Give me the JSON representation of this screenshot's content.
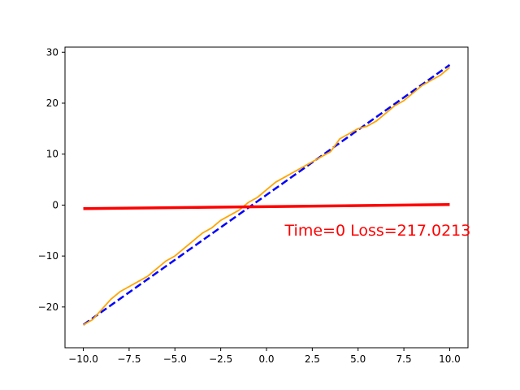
{
  "chart_data": {
    "type": "line",
    "title": "",
    "xlabel": "",
    "ylabel": "",
    "xlim": [
      -11,
      11
    ],
    "ylim": [
      -28,
      31
    ],
    "grid": false,
    "x_ticks": [
      -10,
      -7.5,
      -5,
      -2.5,
      0,
      2.5,
      5,
      7.5,
      10
    ],
    "x_tick_labels": [
      "−10.0",
      "−7.5",
      "−5.0",
      "−2.5",
      "0.0",
      "2.5",
      "5.0",
      "7.5",
      "10.0"
    ],
    "y_ticks": [
      -20,
      -10,
      0,
      10,
      20,
      30
    ],
    "y_tick_labels": [
      "−20",
      "−10",
      "0",
      "10",
      "20",
      "30"
    ],
    "series": [
      {
        "style": "dashed",
        "color": "#0000ff",
        "x": [
          -10,
          10
        ],
        "y": [
          -23.5,
          27.5
        ]
      },
      {
        "style": "noisy-line",
        "color": "#ffa500",
        "x": [
          -10,
          -9.5,
          -9,
          -8.5,
          -8,
          -7.5,
          -7,
          -6.5,
          -6,
          -5.5,
          -5,
          -4.5,
          -4,
          -3.5,
          -3,
          -2.5,
          -2,
          -1.5,
          -1,
          -0.5,
          0,
          0.5,
          1,
          1.5,
          2,
          2.5,
          3,
          3.5,
          4,
          4.5,
          5,
          5.5,
          6,
          6.5,
          7,
          7.5,
          8,
          8.5,
          9,
          9.5,
          10
        ],
        "y": [
          -23.5,
          -22.5,
          -20.5,
          -18.5,
          -17,
          -16,
          -15,
          -14,
          -12.5,
          -11,
          -10,
          -8.5,
          -7,
          -5.5,
          -4.5,
          -3,
          -2,
          -1,
          0.5,
          1.5,
          3,
          4.5,
          5.5,
          6.5,
          7.5,
          8.5,
          9.5,
          10.5,
          13,
          14,
          15,
          15.5,
          16.5,
          18,
          19.5,
          20.5,
          22,
          23.5,
          24.5,
          25.5,
          27
        ]
      },
      {
        "style": "solid",
        "color": "#ff0000",
        "x": [
          -10,
          10
        ],
        "y": [
          -0.7,
          0.1
        ]
      }
    ],
    "annotation": {
      "text": "Time=0 Loss=217.0213",
      "x": 1,
      "y": -5,
      "color": "#ff0000"
    }
  }
}
